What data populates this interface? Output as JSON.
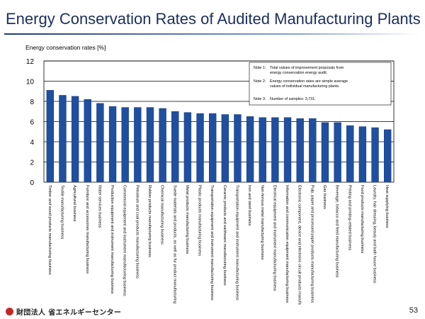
{
  "page": {
    "title": "Energy Conservation Rates of Audited Manufacturing Plants",
    "page_number": "53",
    "footer": {
      "org_prefix": "財団法人",
      "org_name": "省エネルギーセンター"
    }
  },
  "colors": {
    "bar": "#1f4fa0",
    "bar_edge": "#143a7a",
    "title": "#1a2f5c",
    "grid": "#000000",
    "plot_bg": "#ffffff"
  },
  "chart_data": {
    "type": "bar",
    "title": "Energy Conservation Rates of Audited Manufacturing Plants",
    "ylabel": "Energy conservation rates [%]",
    "xlabel": "",
    "ylim": [
      0,
      12
    ],
    "yticks": [
      0,
      2,
      4,
      6,
      8,
      10,
      12
    ],
    "grid": true,
    "notes": [
      {
        "label": "Note 1:",
        "text": "Total values of improvement proposals from energy conservation energy audit."
      },
      {
        "label": "Note 2:",
        "text": "Energy conservation rates are simple average values of individual manufacturing plants."
      },
      {
        "label": "Note 3:",
        "text": "Number of samples: 3,731."
      }
    ],
    "categories": [
      "Timber and wood products manufacturing business",
      "Textile manufacturing business",
      "Agricultural business",
      "Furniture and accessories manufacturing business",
      "Water services business",
      "Production equipment and instrument manufacturing business",
      "Commercial equipment and instrument manufacturing business",
      "Petroleum and coal products manufacturing business",
      "Rubber products manufacturing business",
      "Chemical manufacturing business",
      "Suede materials and products, as well as fur product manufacturing business",
      "Metal products manufacturing business",
      "Plastic products manufacturing business",
      "Transportation equipment and instrument manufacturing business",
      "Ceramic products and earthware manufacturing business",
      "Transportation equipment and instrument manufacturing business",
      "Iron and steel business",
      "Non-ferrous metal manufacturing business",
      "Electrical equipment and instrument manufacturing business",
      "Information and communication equipment manufacturing business",
      "Electronic component, device and electronic circuit products manufacturing business",
      "Pulp, paper and processed paper products manufacturing business",
      "Gas business",
      "Beverage, tobacco and feed manufacturing business",
      "Printing and printing-related business",
      "Food products manufacturing business",
      "Laundry, hair dressing, beauty and bath house business",
      "Heat supplying business"
    ],
    "values": [
      9.1,
      8.6,
      8.5,
      8.2,
      7.8,
      7.5,
      7.4,
      7.4,
      7.4,
      7.3,
      7.0,
      6.9,
      6.8,
      6.8,
      6.7,
      6.7,
      6.5,
      6.4,
      6.4,
      6.4,
      6.3,
      6.3,
      5.9,
      5.9,
      5.6,
      5.5,
      5.4,
      5.2
    ]
  }
}
